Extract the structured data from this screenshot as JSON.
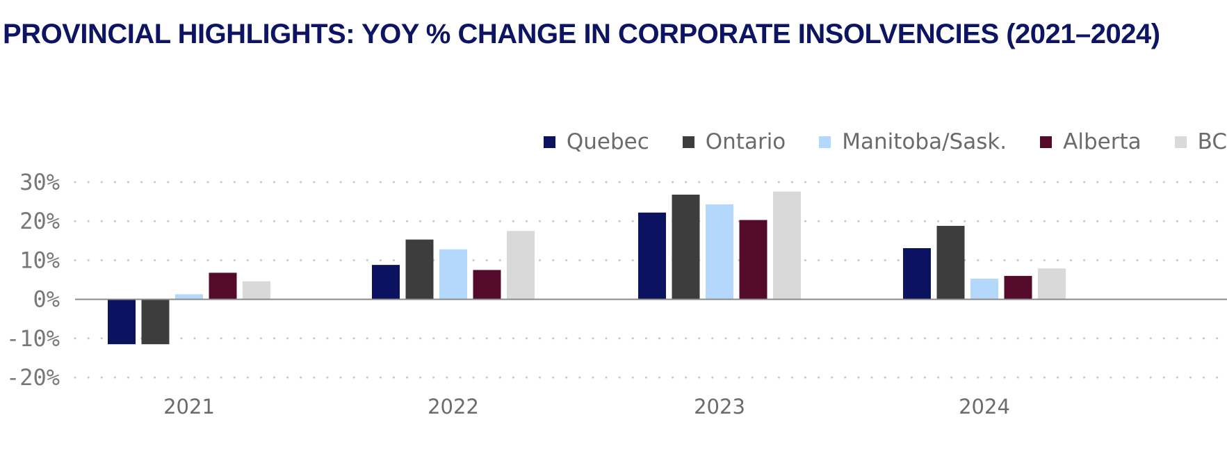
{
  "chart_data": {
    "type": "bar",
    "title": "PROVINCIAL HIGHLIGHTS: YOY % CHANGE IN CORPORATE INSOLVENCIES (2021–2024)",
    "categories": [
      "2021",
      "2022",
      "2023",
      "2024"
    ],
    "series": [
      {
        "name": "Quebec",
        "color": "#0b1260",
        "values": [
          -11.5,
          8.8,
          22.2,
          13.1
        ]
      },
      {
        "name": "Ontario",
        "color": "#3d3d3d",
        "values": [
          -11.5,
          15.3,
          26.8,
          18.8
        ]
      },
      {
        "name": "Manitoba/Sask.",
        "color": "#b3d8fc",
        "values": [
          1.3,
          12.8,
          24.3,
          5.3
        ]
      },
      {
        "name": "Alberta",
        "color": "#540b2b",
        "values": [
          6.8,
          7.5,
          20.3,
          6.0
        ]
      },
      {
        "name": "BC",
        "color": "#d9d9d9",
        "values": [
          4.6,
          17.5,
          27.6,
          7.9
        ]
      }
    ],
    "ylim": [
      -20,
      30
    ],
    "yticks": [
      30,
      20,
      10,
      0,
      -10,
      -20
    ],
    "ytick_labels": [
      "30%",
      "20%",
      "10%",
      "0%",
      "-10%",
      "-20%"
    ],
    "xlabel": "",
    "ylabel": "",
    "grid": true,
    "legend_position": "top-right"
  }
}
